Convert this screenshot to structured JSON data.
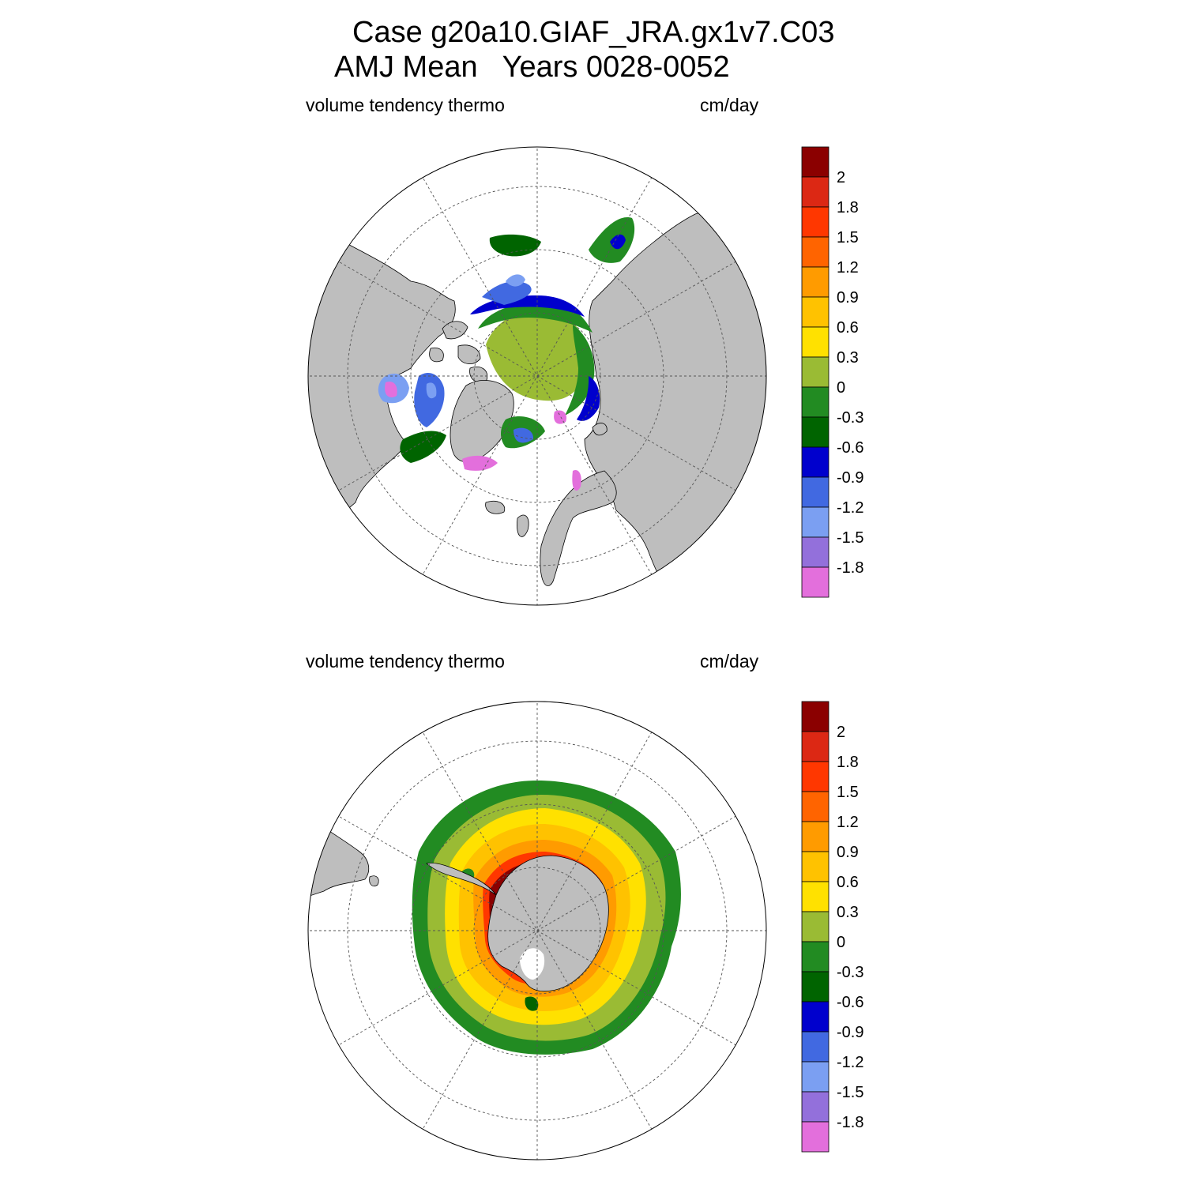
{
  "title": {
    "line1": "Case g20a10.GIAF_JRA.gx1v7.C03",
    "line2": "AMJ Mean   Years 0028-0052"
  },
  "panels": [
    {
      "id": "north",
      "left_label": "volume tendency thermo",
      "right_label": "cm/day"
    },
    {
      "id": "south",
      "left_label": "volume tendency thermo",
      "right_label": "cm/day"
    }
  ],
  "colorbar": {
    "colors": [
      "#e36fdc",
      "#9370db",
      "#7b9ff2",
      "#4169e1",
      "#0000cd",
      "#006400",
      "#228b22",
      "#9abb34",
      "#ffe100",
      "#ffc200",
      "#ff9b00",
      "#ff6400",
      "#ff3700",
      "#dc2814",
      "#8b0000"
    ],
    "labels": [
      "-1.8",
      "-1.5",
      "-1.2",
      "-0.9",
      "-0.6",
      "-0.3",
      "0",
      "0.3",
      "0.6",
      "0.9",
      "1.2",
      "1.5",
      "1.8",
      "2"
    ]
  },
  "map_colors": {
    "land": "#bebebe",
    "ocean": "#ffffff",
    "grid": "#555555"
  }
}
